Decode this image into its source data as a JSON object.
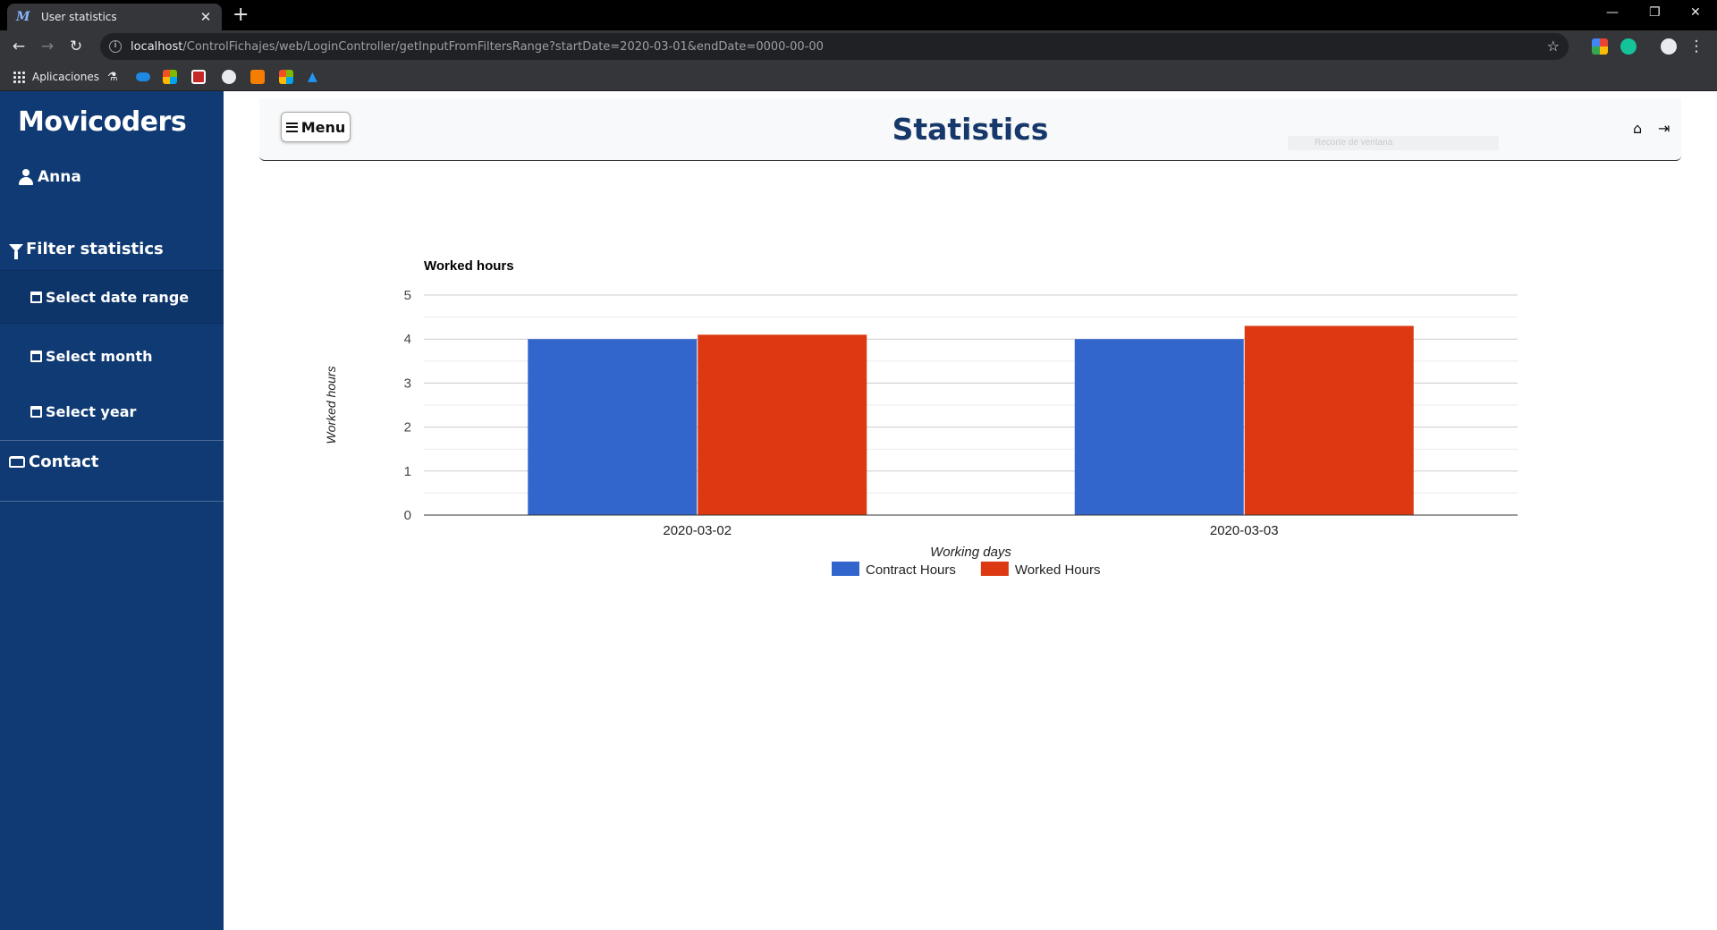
{
  "browser": {
    "tab_title": "User statistics",
    "tab_favicon": "M",
    "new_tab": "+",
    "url_host": "localhost",
    "url_path": "/ControlFichajes/web/LoginController/getInputFromFiltersRange?startDate=2020-03-01&endDate=0000-00-00",
    "bookmarks_apps_label": "Aplicaciones"
  },
  "sidebar": {
    "brand": "Movicoders",
    "user_name": "Anna",
    "filter_heading": "Filter statistics",
    "items": [
      {
        "label": "Select date range"
      },
      {
        "label": "Select month"
      },
      {
        "label": "Select year"
      }
    ],
    "contact": "Contact"
  },
  "header": {
    "menu_label": "Menu",
    "title": "Statistics",
    "ghost_text": "Recorte de ventana"
  },
  "colors": {
    "sidebar": "#0f3a73",
    "title": "#17386a",
    "contract": "#3366cc",
    "worked": "#dc3912"
  },
  "chart_data": {
    "type": "bar",
    "title": "Worked hours",
    "xlabel": "Working days",
    "ylabel": "Worked hours",
    "categories": [
      "2020-03-02",
      "2020-03-03"
    ],
    "series": [
      {
        "name": "Contract Hours",
        "values": [
          4,
          4
        ],
        "color": "#3366cc"
      },
      {
        "name": "Worked Hours",
        "values": [
          4.1,
          4.3
        ],
        "color": "#dc3912"
      }
    ],
    "ylim": [
      0,
      5
    ],
    "yticks": [
      0,
      1,
      2,
      3,
      4,
      5
    ],
    "grid": true,
    "legend": "bottom"
  }
}
